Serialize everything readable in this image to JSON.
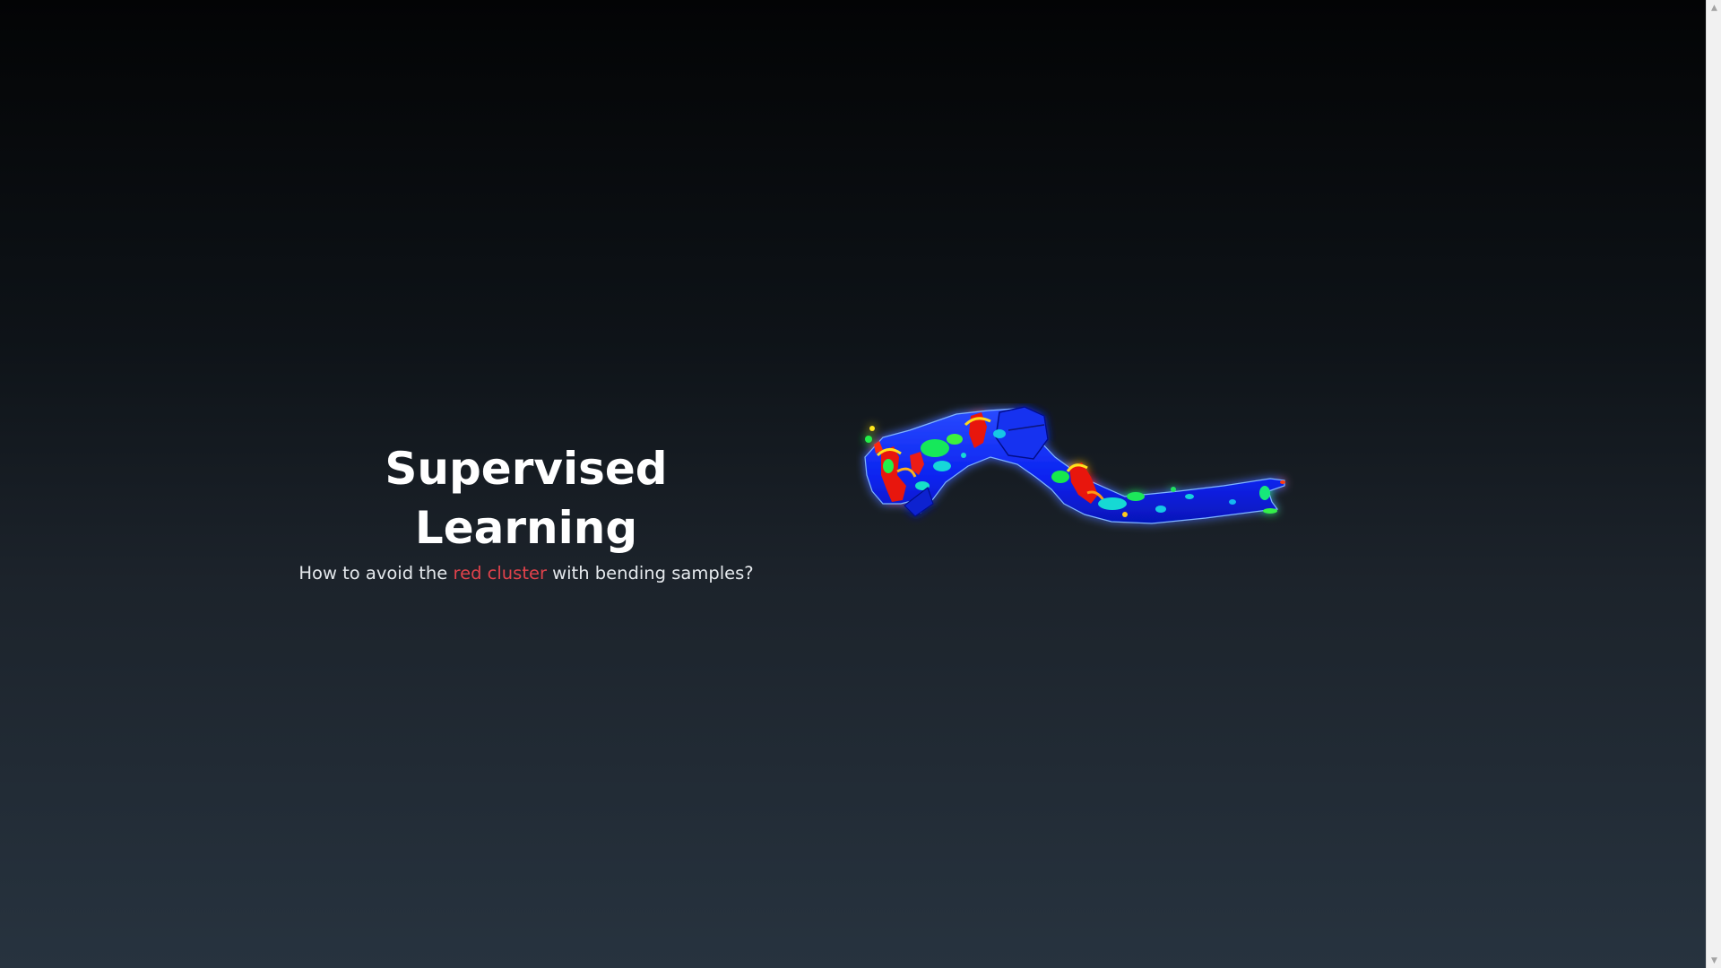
{
  "hero": {
    "title": "Supervised Learning",
    "subtitle_before": "How to avoid the ",
    "subtitle_highlight": "red cluster",
    "subtitle_after": " with bending samples?",
    "highlight_color": "#e0424b"
  },
  "figure": {
    "description_icon": "stress-contour-part-image"
  },
  "scrollbar": {
    "up_icon": "chevron-up-icon",
    "down_icon": "chevron-down-icon"
  }
}
